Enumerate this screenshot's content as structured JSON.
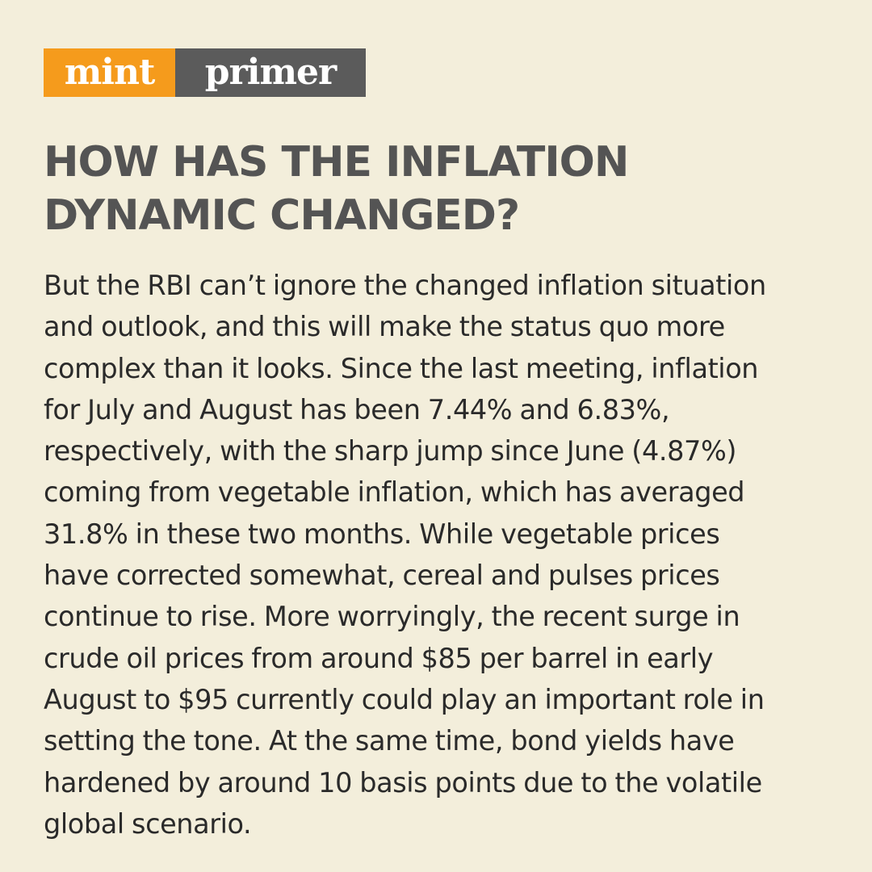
{
  "brand": {
    "part1": "mint",
    "part2": "primer",
    "colors": {
      "orange": "#f59b1c",
      "gray": "#5b5b5b",
      "background": "#f3eedb"
    }
  },
  "headline": {
    "lines": [
      "HOW HAS THE INFLATION",
      "DYNAMIC CHANGED?"
    ]
  },
  "body": {
    "lines": [
      "But the RBI can’t ignore the changed inflation situation",
      "and outlook, and this will make the status quo more",
      "complex than it looks. Since the last meeting, inflation",
      "for July and August has been 7.44% and 6.83%,",
      "respectively, with the sharp jump since June (4.87%)",
      "coming from vegetable inflation, which has averaged",
      "31.8% in these two months. While vegetable prices",
      "have corrected somewhat, cereal and pulses prices",
      "continue to rise. More worryingly, the recent surge in",
      "crude oil prices from around $85 per barrel in early",
      "August to $95 currently could play an important role in",
      "setting the tone. At the same time, bond yields have",
      "hardened by around 10 basis points due to the volatile",
      "global scenario."
    ]
  }
}
